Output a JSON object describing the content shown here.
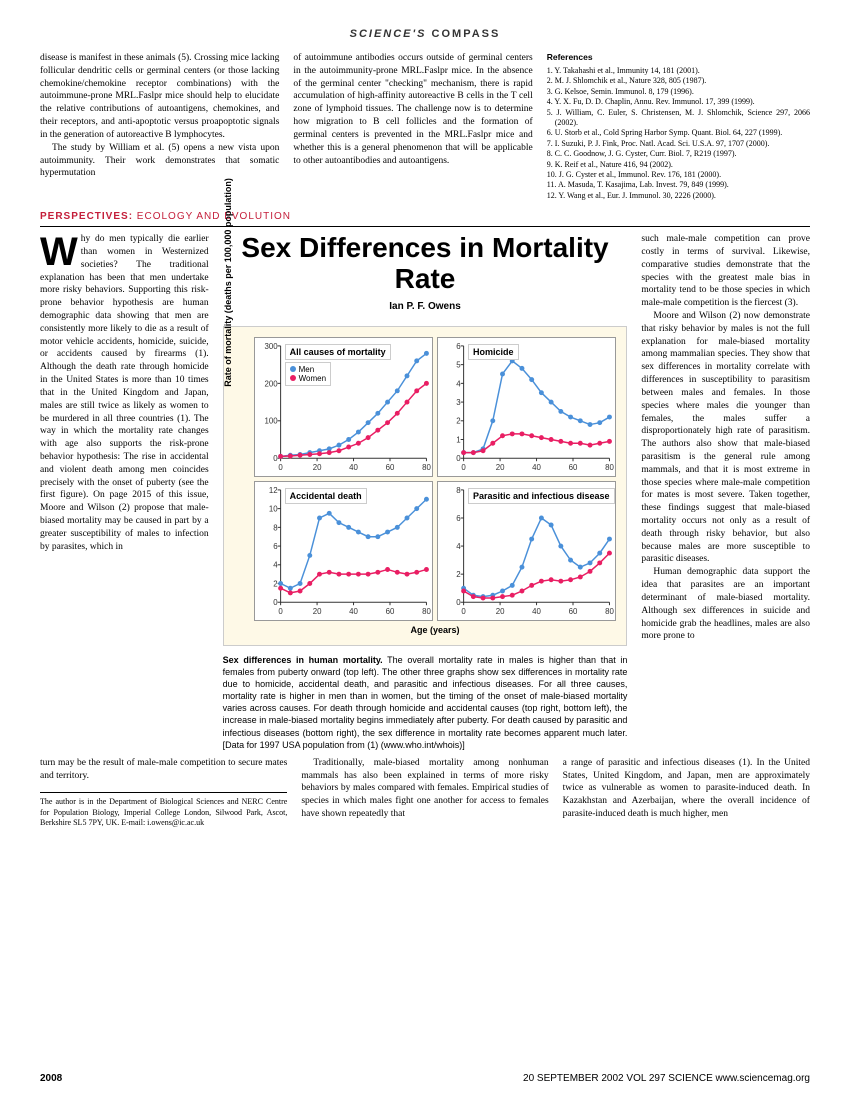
{
  "compass_prefix": "SCIENCE'S",
  "compass_word": "COMPASS",
  "top_col1": "disease is manifest in these animals (5). Crossing mice lacking follicular dendritic cells or germinal centers (or those lacking chemokine/chemokine receptor combinations) with the autoimmune-prone MRL.Faslpr mice should help to elucidate the relative contributions of autoantigens, chemokines, and their receptors, and anti-apoptotic versus proapoptotic signals in the generation of autoreactive B lymphocytes.",
  "top_col1b": "The study by William et al. (5) opens a new vista upon autoimmunity. Their work demonstrates that somatic hypermutation",
  "top_col2": "of autoimmune antibodies occurs outside of germinal centers in the autoimmunity-prone MRL.Faslpr mice. In the absence of the germinal center \"checking\" mechanism, there is rapid accumulation of high-affinity autoreactive B cells in the T cell zone of lymphoid tissues. The challenge now is to determine how migration to B cell follicles and the formation of germinal centers is prevented in the MRL.Faslpr mice and whether this is a general phenomenon that will be applicable to other autoantibodies and autoantigens.",
  "refs_head": "References",
  "refs": [
    "1. Y. Takahashi et al., Immunity 14, 181 (2001).",
    "2. M. J. Shlomchik et al., Nature 328, 805 (1987).",
    "3. G. Kelsoe, Semin. Immunol. 8, 179 (1996).",
    "4. Y. X. Fu, D. D. Chaplin, Annu. Rev. Immunol. 17, 399 (1999).",
    "5. J. William, C. Euler, S. Christensen, M. J. Shlomchik, Science 297, 2066 (2002).",
    "6. U. Storb et al., Cold Spring Harbor Symp. Quant. Biol. 64, 227 (1999).",
    "7. I. Suzuki, P. J. Fink, Proc. Natl. Acad. Sci. U.S.A. 97, 1707 (2000).",
    "8. C. C. Goodnow, J. G. Cyster, Curr. Biol. 7, R219 (1997).",
    "9. K. Reif et al., Nature 416, 94 (2002).",
    "10. J. G. Cyster et al., Immunol. Rev. 176, 181 (2000).",
    "11. A. Masuda, T. Kasajima, Lab. Invest. 79, 849 (1999).",
    "12. Y. Wang et al., Eur. J. Immunol. 30, 2226 (2000)."
  ],
  "section_tag_1": "PERSPECTIVES:",
  "section_tag_2": " ECOLOGY AND EVOLUTION",
  "title": "Sex Differences in Mortality Rate",
  "author": "Ian P.  F. Owens",
  "left_text": "hy do men typically die earlier than women in Westernized societies? The traditional explanation has been that men undertake more risky behaviors. Supporting this risk-prone behavior hypothesis are human demographic data showing that men are consistently more likely to die as a result of motor vehicle accidents, homicide, suicide, or accidents caused by firearms (1). Although the death rate through homicide in the United States is more than 10 times that in the United Kingdom and Japan, males are still twice as likely as women to be murdered in all three countries (1). The way in which the mortality rate changes with age also supports the risk-prone behavior hypothesis: The rise in accidental and violent death among men coincides precisely with the onset of puberty (see the first figure). On page 2015 of this issue, Moore and Wilson (2) propose that male-biased mortality may be caused in part by a greater susceptibility of males to infection by parasites, which in",
  "left_tail": "turn may be the result of male-male competition to secure mates and territory.",
  "affil": "The author is in the Department of Biological Sciences and NERC Centre for Population Biology, Imperial College London, Silwood Park, Ascot, Berkshire SL5 7PY, UK. E-mail: i.owens@ic.ac.uk",
  "right_text": "such male-male competition can prove costly in terms of survival. Likewise, comparative studies demonstrate that the species with the greatest male bias in mortality tend to be those species in which male-male competition is the fiercest (3).",
  "right_text2": "Moore and Wilson (2) now demonstrate that risky behavior by males is not the full explanation for male-biased mortality among mammalian species. They show that sex differences in mortality correlate with differences in susceptibility to parasitism between males and females. In those species where males die younger than females, the males suffer a disproportionately high rate of parasitism. The authors also show that male-biased parasitism is the general rule among mammals, and that it is most extreme in those species where male-male competition for mates is most severe. Taken together, these findings suggest that male-biased mortality occurs not only as a result of death through risky behavior, but also because males are more susceptible to parasitic diseases.",
  "right_text3": "Human demographic data support the idea that parasites are an important determinant of male-biased mortality. Although sex differences in suicide and homicide grab the headlines, males are also more prone to",
  "bottom_l": "Traditionally, male-biased mortality among nonhuman mammals has also been explained in terms of more risky behaviors by males compared with females. Empirical studies of species in which males fight one another for access to females have shown repeatedly that",
  "bottom_r": "a range of parasitic and infectious diseases (1). In the United States, United Kingdom, and Japan, men are approximately twice as vulnerable as women to parasite-induced death. In Kazakhstan and Azerbaijan, where the overall incidence of parasite-induced death is much higher, men",
  "caption_bold": "Sex differences in human mortality.",
  "caption": " The overall mortality rate in males is higher than that in females from puberty onward (top left). The other three graphs show sex differences in mortality rate due to homicide, accidental death, and parasitic and infectious diseases. For all three causes, mortality rate is higher in men than in women, but the timing of the onset of male-biased mortality varies across causes. For death through homicide and accidental causes (top right, bottom left), the increase in male-biased mortality begins immediately after puberty. For death caused by parasitic and infectious diseases (bottom right), the sex difference in mortality rate becomes apparent much later. [Data for 1997 USA population from (1) (www.who.int/whois)]",
  "charts": {
    "yaxis": "Rate of mortality (deaths per 100,000 population)",
    "xaxis": "Age (years)",
    "men_color": "#4a90d9",
    "women_color": "#e91e63",
    "xticks": [
      0,
      20,
      40,
      60,
      80
    ],
    "panels": [
      {
        "title": "All causes of mortality",
        "ymax": 300,
        "yticks": [
          0,
          100,
          200,
          300
        ],
        "legend": true,
        "men": [
          5,
          8,
          10,
          15,
          20,
          25,
          35,
          50,
          70,
          95,
          120,
          150,
          180,
          220,
          260,
          280
        ],
        "women": [
          5,
          6,
          8,
          10,
          12,
          15,
          20,
          30,
          40,
          55,
          75,
          95,
          120,
          150,
          180,
          200
        ]
      },
      {
        "title": "Homicide",
        "ymax": 6,
        "yticks": [
          0,
          1,
          2,
          3,
          4,
          5,
          6
        ],
        "men": [
          0.3,
          0.3,
          0.5,
          2.0,
          4.5,
          5.2,
          4.8,
          4.2,
          3.5,
          3.0,
          2.5,
          2.2,
          2.0,
          1.8,
          1.9,
          2.2
        ],
        "women": [
          0.3,
          0.3,
          0.4,
          0.8,
          1.2,
          1.3,
          1.3,
          1.2,
          1.1,
          1.0,
          0.9,
          0.8,
          0.8,
          0.7,
          0.8,
          0.9
        ]
      },
      {
        "title": "Accidental death",
        "ymax": 12,
        "yticks": [
          0,
          2,
          4,
          6,
          8,
          10,
          12
        ],
        "men": [
          2,
          1.5,
          2,
          5,
          9,
          9.5,
          8.5,
          8,
          7.5,
          7,
          7,
          7.5,
          8,
          9,
          10,
          11
        ],
        "women": [
          1.5,
          1,
          1.2,
          2,
          3,
          3.2,
          3,
          3,
          3,
          3,
          3.2,
          3.5,
          3.2,
          3,
          3.2,
          3.5
        ]
      },
      {
        "title": "Parasitic and infectious disease",
        "ymax": 8,
        "yticks": [
          0,
          2,
          4,
          6,
          8
        ],
        "men": [
          1,
          0.5,
          0.4,
          0.5,
          0.8,
          1.2,
          2.5,
          4.5,
          6,
          5.5,
          4,
          3,
          2.5,
          2.8,
          3.5,
          4.5
        ],
        "women": [
          0.8,
          0.4,
          0.3,
          0.3,
          0.4,
          0.5,
          0.8,
          1.2,
          1.5,
          1.6,
          1.5,
          1.6,
          1.8,
          2.2,
          2.8,
          3.5
        ]
      }
    ]
  },
  "legend_men": "Men",
  "legend_women": "Women",
  "page_num": "2008",
  "footer_text": "20 SEPTEMBER 2002   VOL 297   SCIENCE   www.sciencemag.org"
}
